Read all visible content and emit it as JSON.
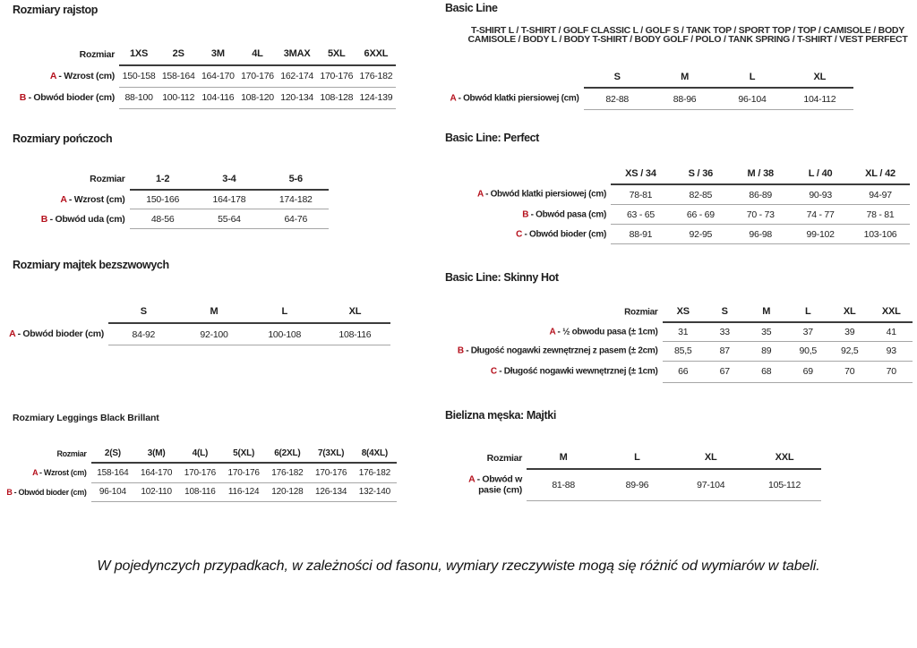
{
  "colors": {
    "text": "#1e1e1e",
    "accent_red": "#b5101c",
    "rule_dark": "#3c3c3c",
    "rule_light": "#a6a6a6",
    "background": "#ffffff"
  },
  "sections": {
    "rajstop": {
      "title": "Rozmiary rajstop",
      "corner": "Rozmiar",
      "sizes": [
        "1XS",
        "2S",
        "3M",
        "4L",
        "3MAX",
        "5XL",
        "6XXL"
      ],
      "rows": [
        {
          "letter": "A",
          "label": "- Wzrost (cm)",
          "values": [
            "150-158",
            "158-164",
            "164-170",
            "170-176",
            "162-174",
            "170-176",
            "176-182"
          ]
        },
        {
          "letter": "B",
          "label": "- Obwód bioder (cm)",
          "values": [
            "88-100",
            "100-112",
            "104-116",
            "108-120",
            "120-134",
            "108-128",
            "124-139"
          ]
        }
      ]
    },
    "ponczoch": {
      "title": "Rozmiary pończoch",
      "corner": "Rozmiar",
      "sizes": [
        "1-2",
        "3-4",
        "5-6"
      ],
      "rows": [
        {
          "letter": "A",
          "label": "- Wzrost (cm)",
          "values": [
            "150-166",
            "164-178",
            "174-182"
          ]
        },
        {
          "letter": "B",
          "label": "- Obwód uda (cm)",
          "values": [
            "48-56",
            "55-64",
            "64-76"
          ]
        }
      ]
    },
    "majtek": {
      "title": "Rozmiary majtek bezszwowych",
      "corner": "",
      "sizes": [
        "S",
        "M",
        "L",
        "XL"
      ],
      "rows": [
        {
          "letter": "A",
          "label": "- Obwód bioder (cm)",
          "values": [
            "84-92",
            "92-100",
            "100-108",
            "108-116"
          ]
        }
      ]
    },
    "leggings": {
      "title": "Rozmiary Leggings Black Brillant",
      "corner": "Rozmiar",
      "sizes": [
        "2(S)",
        "3(M)",
        "4(L)",
        "5(XL)",
        "6(2XL)",
        "7(3XL)",
        "8(4XL)"
      ],
      "rows": [
        {
          "letter": "A",
          "label": "- Wzrost (cm)",
          "values": [
            "158-164",
            "164-170",
            "170-176",
            "170-176",
            "176-182",
            "170-176",
            "176-182"
          ]
        },
        {
          "letter": "B",
          "label": "- Obwód bioder (cm)",
          "values": [
            "96-104",
            "102-110",
            "108-116",
            "116-124",
            "120-128",
            "126-134",
            "132-140"
          ]
        }
      ]
    },
    "basic": {
      "title": "Basic Line",
      "caption_line1": "T-SHIRT L / T-SHIRT / GOLF CLASSIC L / GOLF S / TANK TOP / SPORT TOP / TOP / CAMISOLE / BODY",
      "caption_line2": "CAMISOLE / BODY L / BODY T-SHIRT / BODY GOLF / POLO / TANK SPRING / T-SHIRT / VEST PERFECT",
      "corner": "",
      "sizes": [
        "S",
        "M",
        "L",
        "XL"
      ],
      "rows": [
        {
          "letter": "A",
          "label": "- Obwód klatki piersiowej (cm)",
          "values": [
            "82-88",
            "88-96",
            "96-104",
            "104-112"
          ]
        }
      ]
    },
    "perfect": {
      "title": "Basic Line: Perfect",
      "corner": "",
      "sizes": [
        "XS / 34",
        "S / 36",
        "M / 38",
        "L / 40",
        "XL / 42"
      ],
      "rows": [
        {
          "letter": "A",
          "label": "- Obwód klatki piersiowej (cm)",
          "values": [
            "78-81",
            "82-85",
            "86-89",
            "90-93",
            "94-97"
          ]
        },
        {
          "letter": "B",
          "label": "- Obwód pasa (cm)",
          "values": [
            "63 - 65",
            "66 - 69",
            "70 - 73",
            "74 - 77",
            "78 - 81"
          ]
        },
        {
          "letter": "C",
          "label": "- Obwód bioder (cm)",
          "values": [
            "88-91",
            "92-95",
            "96-98",
            "99-102",
            "103-106"
          ]
        }
      ]
    },
    "skinny": {
      "title": "Basic Line: Skinny Hot",
      "corner": "Rozmiar",
      "sizes": [
        "XS",
        "S",
        "M",
        "L",
        "XL",
        "XXL"
      ],
      "rows": [
        {
          "letter": "A",
          "label": "- ½ obwodu pasa (± 1cm)",
          "values": [
            "31",
            "33",
            "35",
            "37",
            "39",
            "41"
          ]
        },
        {
          "letter": "B",
          "label": "- Długość nogawki zewnętrznej z pasem (± 2cm)",
          "values": [
            "85,5",
            "87",
            "89",
            "90,5",
            "92,5",
            "93"
          ]
        },
        {
          "letter": "C",
          "label": "- Długość nogawki wewnętrznej (± 1cm)",
          "values": [
            "66",
            "67",
            "68",
            "69",
            "70",
            "70"
          ]
        }
      ]
    },
    "majtki_meskie": {
      "title": "Bielizna męska: Majtki",
      "corner": "Rozmiar",
      "sizes": [
        "M",
        "L",
        "XL",
        "XXL"
      ],
      "rows": [
        {
          "letter": "A",
          "label": "- Obwód w pasie (cm)",
          "values": [
            "81-88",
            "89-96",
            "97-104",
            "105-112"
          ]
        }
      ]
    }
  },
  "footer": {
    "note": "W pojedynczych przypadkach, w zależności od fasonu, wymiary rzeczywiste mogą się różnić od wymiarów w tabeli."
  }
}
